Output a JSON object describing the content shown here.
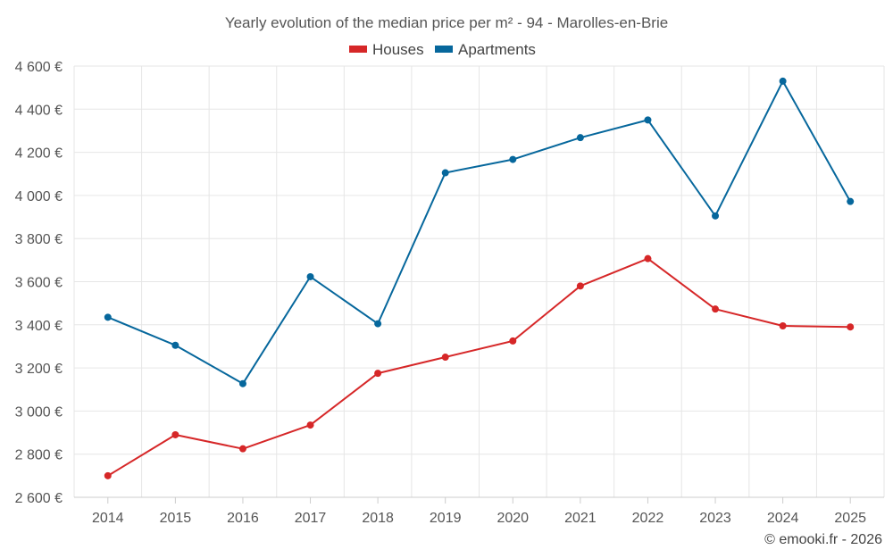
{
  "chart_data": {
    "type": "line",
    "title": "Yearly evolution of the median price per m² - 94 - Marolles-en-Brie",
    "categories": [
      "2014",
      "2015",
      "2016",
      "2017",
      "2018",
      "2019",
      "2020",
      "2021",
      "2022",
      "2023",
      "2024",
      "2025"
    ],
    "series": [
      {
        "name": "Houses",
        "color": "#d62728",
        "values": [
          2700,
          2890,
          2825,
          2935,
          3175,
          3250,
          3325,
          3580,
          3707,
          3473,
          3395,
          3390
        ]
      },
      {
        "name": "Apartments",
        "color": "#06679c",
        "values": [
          3435,
          3305,
          3127,
          3623,
          3405,
          4105,
          4167,
          4268,
          4350,
          3905,
          4530,
          3972
        ]
      }
    ],
    "ylim": [
      2600,
      4600
    ],
    "yticks": [
      2600,
      2800,
      3000,
      3200,
      3400,
      3600,
      3800,
      4000,
      4200,
      4400,
      4600
    ],
    "ytick_labels": [
      "2 600 €",
      "2 800 €",
      "3 000 €",
      "3 200 €",
      "3 400 €",
      "3 600 €",
      "3 800 €",
      "4 000 €",
      "4 200 €",
      "4 400 €",
      "4 600 €"
    ],
    "xlabel": "",
    "ylabel": "",
    "grid": true,
    "legend_position": "top-center",
    "credit": "© emooki.fr - 2026"
  }
}
